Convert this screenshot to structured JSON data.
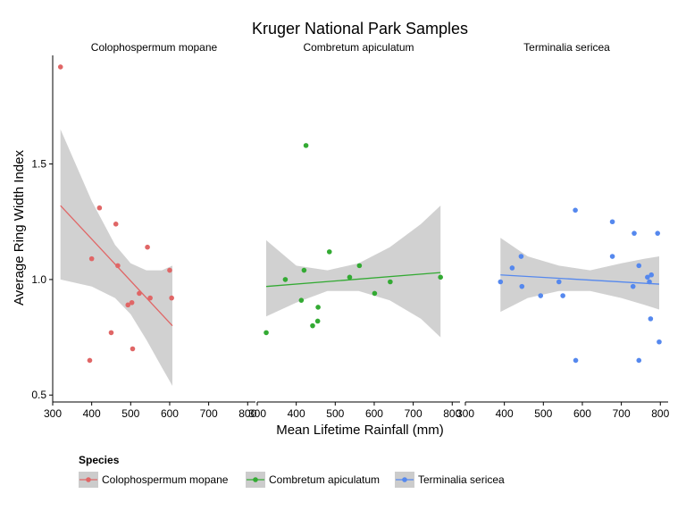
{
  "chart_data": {
    "type": "scatter",
    "title": "Kruger National Park Samples",
    "xlabel": "Mean Lifetime Rainfall (mm)",
    "ylabel": "Average Ring Width Index",
    "xlim": [
      300,
      820
    ],
    "ylim": [
      0.47,
      1.97
    ],
    "xticks": [
      300,
      400,
      500,
      600,
      700,
      800
    ],
    "yticks": [
      0.5,
      1.0,
      1.5
    ],
    "grid": false,
    "facet_by": "species",
    "legend": {
      "title": "Species",
      "position": "bottom-left"
    },
    "series": [
      {
        "name": "Colophospermum mopane",
        "color": "#e06666",
        "points": [
          {
            "x": 320,
            "y": 1.92
          },
          {
            "x": 395,
            "y": 0.65
          },
          {
            "x": 400,
            "y": 1.09
          },
          {
            "x": 420,
            "y": 1.31
          },
          {
            "x": 450,
            "y": 0.77
          },
          {
            "x": 462,
            "y": 1.24
          },
          {
            "x": 467,
            "y": 1.06
          },
          {
            "x": 493,
            "y": 0.89
          },
          {
            "x": 503,
            "y": 0.9
          },
          {
            "x": 505,
            "y": 0.7
          },
          {
            "x": 522,
            "y": 0.94
          },
          {
            "x": 543,
            "y": 1.14
          },
          {
            "x": 550,
            "y": 0.92
          },
          {
            "x": 600,
            "y": 1.04
          },
          {
            "x": 605,
            "y": 0.92
          }
        ],
        "fit": {
          "x_start": 320,
          "y_start": 1.32,
          "x_end": 607,
          "y_end": 0.8
        },
        "band": [
          {
            "x": 320,
            "lo": 1.0,
            "hi": 1.65
          },
          {
            "x": 400,
            "lo": 0.97,
            "hi": 1.34
          },
          {
            "x": 460,
            "lo": 0.92,
            "hi": 1.15
          },
          {
            "x": 500,
            "lo": 0.85,
            "hi": 1.07
          },
          {
            "x": 540,
            "lo": 0.74,
            "hi": 1.04
          },
          {
            "x": 580,
            "lo": 0.62,
            "hi": 1.04
          },
          {
            "x": 607,
            "lo": 0.54,
            "hi": 1.06
          }
        ]
      },
      {
        "name": "Combretum apiculatum",
        "color": "#33aa33",
        "points": [
          {
            "x": 323,
            "y": 0.77
          },
          {
            "x": 372,
            "y": 1.0
          },
          {
            "x": 413,
            "y": 0.91
          },
          {
            "x": 420,
            "y": 1.04
          },
          {
            "x": 425,
            "y": 1.58
          },
          {
            "x": 442,
            "y": 0.8
          },
          {
            "x": 455,
            "y": 0.82
          },
          {
            "x": 456,
            "y": 0.88
          },
          {
            "x": 485,
            "y": 1.12
          },
          {
            "x": 537,
            "y": 1.01
          },
          {
            "x": 562,
            "y": 1.06
          },
          {
            "x": 601,
            "y": 0.94
          },
          {
            "x": 641,
            "y": 0.99
          },
          {
            "x": 770,
            "y": 1.01
          }
        ],
        "fit": {
          "x_start": 323,
          "y_start": 0.97,
          "x_end": 770,
          "y_end": 1.03
        },
        "band": [
          {
            "x": 323,
            "lo": 0.84,
            "hi": 1.17
          },
          {
            "x": 400,
            "lo": 0.9,
            "hi": 1.06
          },
          {
            "x": 480,
            "lo": 0.95,
            "hi": 1.04
          },
          {
            "x": 560,
            "lo": 0.95,
            "hi": 1.07
          },
          {
            "x": 640,
            "lo": 0.91,
            "hi": 1.14
          },
          {
            "x": 720,
            "lo": 0.83,
            "hi": 1.24
          },
          {
            "x": 770,
            "lo": 0.75,
            "hi": 1.32
          }
        ]
      },
      {
        "name": "Terminalia sericea",
        "color": "#5588ee",
        "points": [
          {
            "x": 390,
            "y": 0.99
          },
          {
            "x": 420,
            "y": 1.05
          },
          {
            "x": 443,
            "y": 1.1
          },
          {
            "x": 445,
            "y": 0.97
          },
          {
            "x": 493,
            "y": 0.93
          },
          {
            "x": 540,
            "y": 0.99
          },
          {
            "x": 550,
            "y": 0.93
          },
          {
            "x": 582,
            "y": 1.3
          },
          {
            "x": 583,
            "y": 0.65
          },
          {
            "x": 677,
            "y": 1.25
          },
          {
            "x": 677,
            "y": 1.1
          },
          {
            "x": 730,
            "y": 0.97
          },
          {
            "x": 733,
            "y": 1.2
          },
          {
            "x": 745,
            "y": 1.06
          },
          {
            "x": 745,
            "y": 0.65
          },
          {
            "x": 767,
            "y": 1.01
          },
          {
            "x": 772,
            "y": 0.99
          },
          {
            "x": 775,
            "y": 0.83
          },
          {
            "x": 777,
            "y": 1.02
          },
          {
            "x": 793,
            "y": 1.2
          },
          {
            "x": 797,
            "y": 0.73
          }
        ],
        "fit": {
          "x_start": 390,
          "y_start": 1.02,
          "x_end": 797,
          "y_end": 0.98
        },
        "band": [
          {
            "x": 390,
            "lo": 0.86,
            "hi": 1.18
          },
          {
            "x": 460,
            "lo": 0.92,
            "hi": 1.1
          },
          {
            "x": 540,
            "lo": 0.95,
            "hi": 1.06
          },
          {
            "x": 620,
            "lo": 0.95,
            "hi": 1.04
          },
          {
            "x": 700,
            "lo": 0.92,
            "hi": 1.07
          },
          {
            "x": 760,
            "lo": 0.89,
            "hi": 1.09
          },
          {
            "x": 797,
            "lo": 0.87,
            "hi": 1.1
          }
        ]
      }
    ]
  }
}
